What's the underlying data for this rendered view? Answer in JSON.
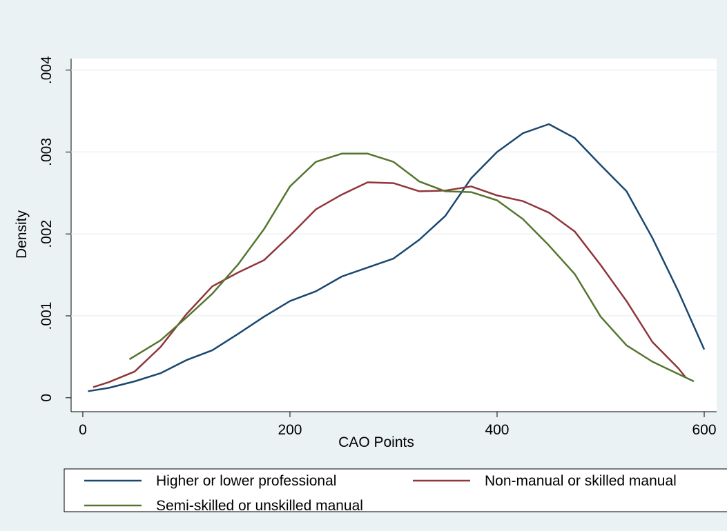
{
  "chart_data": {
    "type": "line",
    "x_label": "CAO Points",
    "y_label": "Density",
    "xlim": [
      -11.3,
      612
    ],
    "ylim": [
      -0.00017,
      0.00414
    ],
    "xticks": [
      0,
      200,
      400,
      600
    ],
    "yticks": [
      0,
      {
        "value": 0.001,
        "label": ".001"
      },
      {
        "value": 0.002,
        "label": ".002"
      },
      {
        "value": 0.003,
        "label": ".003"
      },
      {
        "value": 0.004,
        "label": ".004"
      }
    ],
    "grid": true,
    "legend": "bottom",
    "series": [
      {
        "name": "Higher or lower professional",
        "color": "#1a476f",
        "x": [
          5,
          25,
          50,
          75,
          100,
          125,
          150,
          175,
          200,
          225,
          250,
          275,
          300,
          325,
          350,
          375,
          400,
          425,
          450,
          475,
          500,
          525,
          550,
          575,
          600
        ],
        "values": [
          8e-05,
          0.00012,
          0.0002,
          0.0003,
          0.00046,
          0.00058,
          0.00078,
          0.00099,
          0.00118,
          0.0013,
          0.00148,
          0.00159,
          0.0017,
          0.00193,
          0.00222,
          0.00268,
          0.003,
          0.00323,
          0.00334,
          0.00317,
          0.00284,
          0.00252,
          0.00195,
          0.0013,
          0.00059
        ]
      },
      {
        "name": "Non-manual or skilled manual",
        "color": "#90353b",
        "x": [
          10,
          25,
          50,
          75,
          100,
          125,
          150,
          175,
          200,
          225,
          250,
          275,
          300,
          325,
          350,
          375,
          400,
          425,
          450,
          475,
          500,
          525,
          550,
          575,
          582
        ],
        "values": [
          0.00013,
          0.00019,
          0.00032,
          0.00062,
          0.00102,
          0.00136,
          0.00153,
          0.00168,
          0.00198,
          0.0023,
          0.00248,
          0.00263,
          0.00262,
          0.00252,
          0.00253,
          0.00258,
          0.00247,
          0.0024,
          0.00226,
          0.00203,
          0.00162,
          0.00118,
          0.00068,
          0.00036,
          0.00025
        ]
      },
      {
        "name": "Semi-skilled or unskilled manual",
        "color": "#55752f",
        "x": [
          45,
          75,
          100,
          125,
          150,
          175,
          200,
          225,
          250,
          275,
          300,
          325,
          350,
          375,
          400,
          425,
          450,
          475,
          500,
          525,
          550,
          575,
          590
        ],
        "values": [
          0.00047,
          0.0007,
          0.00098,
          0.00127,
          0.00163,
          0.00206,
          0.00258,
          0.00288,
          0.00298,
          0.00298,
          0.00288,
          0.00264,
          0.00252,
          0.00251,
          0.00241,
          0.00218,
          0.00186,
          0.00151,
          0.00099,
          0.00064,
          0.00044,
          0.00029,
          0.0002
        ]
      }
    ]
  }
}
